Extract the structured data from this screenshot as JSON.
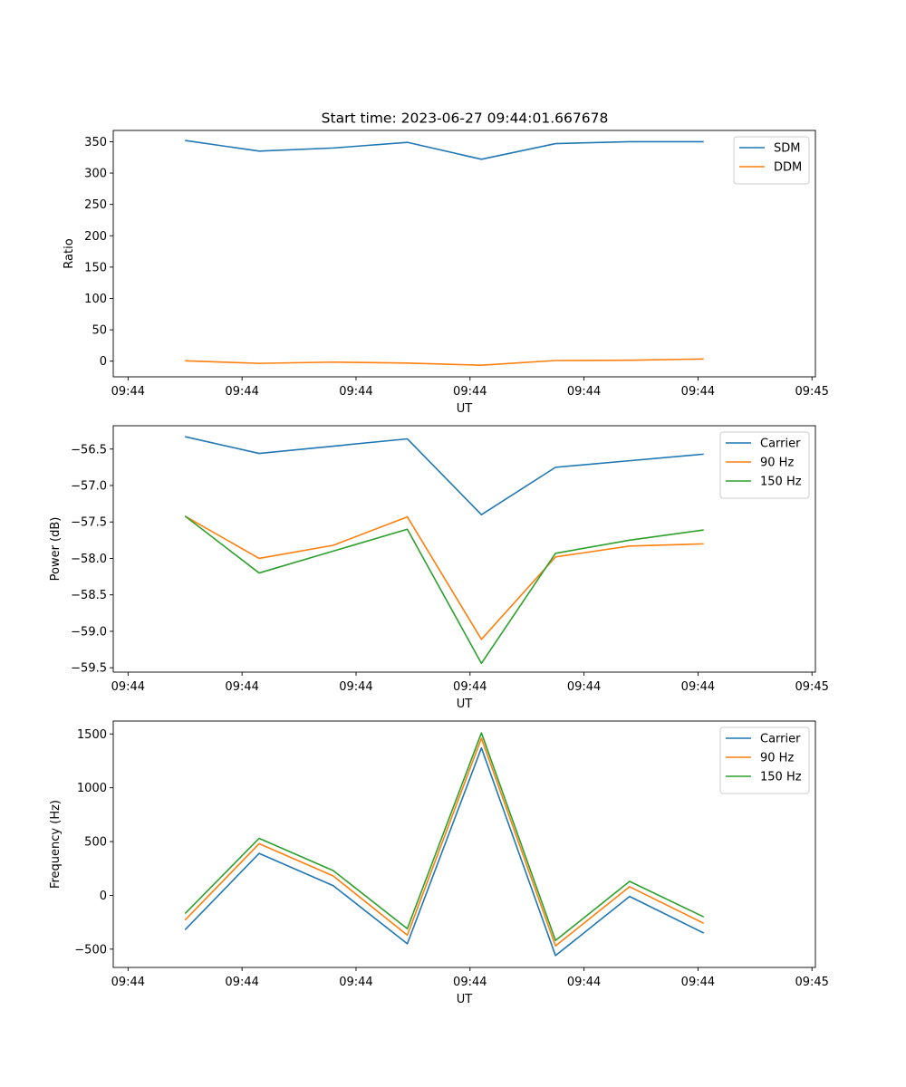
{
  "figure": {
    "title": "Start time: 2023-06-27 09:44:01.667678"
  },
  "chart_data": [
    {
      "type": "line",
      "title": "Start time: 2023-06-27 09:44:01.667678",
      "xlabel": "UT",
      "ylabel": "Ratio",
      "x_tick_labels": [
        "09:44",
        "09:44",
        "09:44",
        "09:44",
        "09:44",
        "09:44",
        "09:45"
      ],
      "x_tick_values": [
        0,
        1,
        2,
        3,
        4,
        5,
        6
      ],
      "xlim": [
        -0.13,
        6.03
      ],
      "x": [
        0.5,
        1.15,
        1.8,
        2.45,
        3.1,
        3.75,
        4.4,
        5.05
      ],
      "ylim": [
        -25,
        368
      ],
      "y_ticks": [
        0,
        50,
        100,
        150,
        200,
        250,
        300,
        350
      ],
      "grid": false,
      "legend": "upper right",
      "series": [
        {
          "name": "SDM",
          "color": "#1f77b4",
          "values": [
            352,
            335,
            340,
            349,
            322,
            347,
            350,
            350
          ]
        },
        {
          "name": "DDM",
          "color": "#ff7f0e",
          "values": [
            0.5,
            -3.5,
            -1.5,
            -3,
            -6.5,
            1,
            1.5,
            3.5
          ]
        }
      ]
    },
    {
      "type": "line",
      "xlabel": "UT",
      "ylabel": "Power (dB)",
      "x_tick_labels": [
        "09:44",
        "09:44",
        "09:44",
        "09:44",
        "09:44",
        "09:44",
        "09:45"
      ],
      "x_tick_values": [
        0,
        1,
        2,
        3,
        4,
        5,
        6
      ],
      "xlim": [
        -0.13,
        6.03
      ],
      "x": [
        0.5,
        1.15,
        1.8,
        2.45,
        3.1,
        3.75,
        4.4,
        5.05
      ],
      "ylim": [
        -59.56,
        -56.18
      ],
      "y_ticks": [
        -59.5,
        -59.0,
        -58.5,
        -58.0,
        -57.5,
        -57.0,
        -56.5
      ],
      "y_tick_labels": [
        "−59.5",
        "−59.0",
        "−58.5",
        "−58.0",
        "−57.5",
        "−57.0",
        "−56.5"
      ],
      "grid": false,
      "legend": "upper right",
      "series": [
        {
          "name": "Carrier",
          "color": "#1f77b4",
          "values": [
            -56.33,
            -56.56,
            -56.46,
            -56.36,
            -57.4,
            -56.75,
            -56.66,
            -56.57
          ]
        },
        {
          "name": "90 Hz",
          "color": "#ff7f0e",
          "values": [
            -57.42,
            -58.0,
            -57.82,
            -57.43,
            -59.11,
            -57.98,
            -57.83,
            -57.8
          ]
        },
        {
          "name": "150 Hz",
          "color": "#2ca02c",
          "values": [
            -57.42,
            -58.2,
            -57.9,
            -57.6,
            -59.44,
            -57.93,
            -57.75,
            -57.61
          ]
        }
      ]
    },
    {
      "type": "line",
      "xlabel": "UT",
      "ylabel": "Frequency (Hz)",
      "x_tick_labels": [
        "09:44",
        "09:44",
        "09:44",
        "09:44",
        "09:44",
        "09:44",
        "09:45"
      ],
      "x_tick_values": [
        0,
        1,
        2,
        3,
        4,
        5,
        6
      ],
      "xlim": [
        -0.13,
        6.03
      ],
      "x": [
        0.5,
        1.15,
        1.8,
        2.45,
        3.1,
        3.75,
        4.4,
        5.05
      ],
      "ylim": [
        -670,
        1620
      ],
      "y_ticks": [
        -500,
        0,
        500,
        1000,
        1500
      ],
      "y_tick_labels": [
        "−500",
        "0",
        "500",
        "1000",
        "1500"
      ],
      "grid": false,
      "legend": "upper right",
      "series": [
        {
          "name": "Carrier",
          "color": "#1f77b4",
          "values": [
            -320,
            390,
            90,
            -450,
            1370,
            -560,
            -10,
            -350
          ]
        },
        {
          "name": "90 Hz",
          "color": "#ff7f0e",
          "values": [
            -230,
            480,
            180,
            -370,
            1460,
            -470,
            80,
            -260
          ]
        },
        {
          "name": "150 Hz",
          "color": "#2ca02c",
          "values": [
            -170,
            530,
            230,
            -310,
            1510,
            -420,
            130,
            -200
          ]
        }
      ]
    }
  ]
}
